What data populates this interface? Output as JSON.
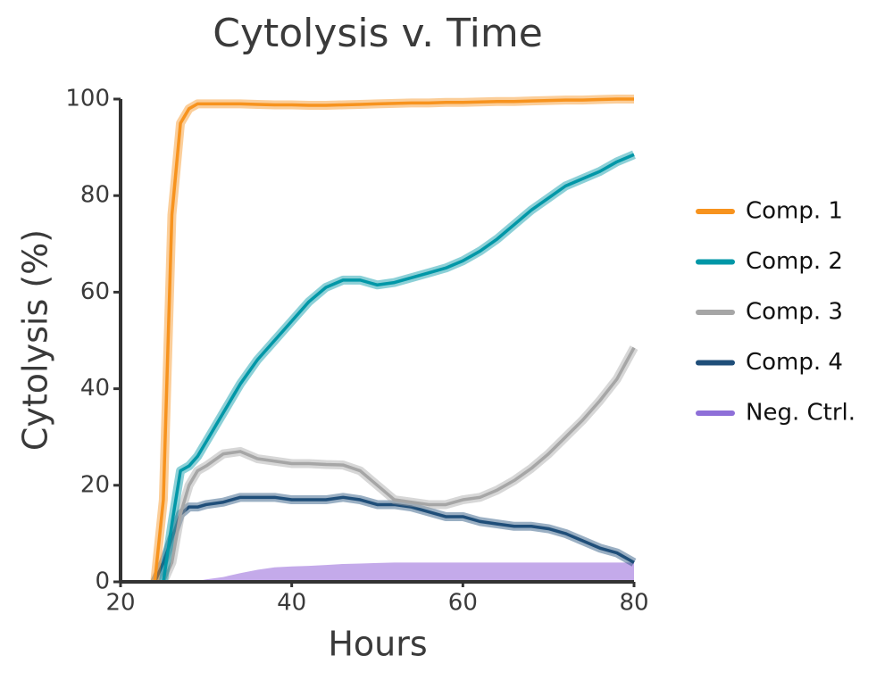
{
  "chart_data": {
    "type": "line",
    "title": "Cytolysis v. Time",
    "x_label": "Hours",
    "y_label": "Cytolysis (%)",
    "xlim": [
      20,
      80
    ],
    "ylim": [
      0,
      100
    ],
    "xticks": [
      20,
      40,
      60,
      80
    ],
    "yticks": [
      0,
      20,
      40,
      60,
      80,
      100
    ],
    "grid": false,
    "legend": "right",
    "x": [
      24,
      25,
      26,
      27,
      28,
      29,
      30,
      32,
      34,
      36,
      38,
      40,
      42,
      44,
      46,
      48,
      50,
      52,
      54,
      56,
      58,
      60,
      62,
      64,
      66,
      68,
      70,
      72,
      74,
      76,
      78,
      80
    ],
    "series": [
      {
        "name": "Comp. 1",
        "color": "#f7931e",
        "values": [
          0,
          17,
          76,
          95,
          98,
          99,
          99,
          99,
          99,
          98.9,
          98.8,
          98.8,
          98.7,
          98.7,
          98.8,
          98.9,
          99,
          99.1,
          99.2,
          99.2,
          99.3,
          99.3,
          99.4,
          99.5,
          99.5,
          99.6,
          99.7,
          99.8,
          99.8,
          99.9,
          100,
          100
        ]
      },
      {
        "name": "Comp. 2",
        "color": "#0097a7",
        "values": [
          null,
          0,
          12,
          23,
          24,
          26,
          29,
          35,
          41,
          46,
          50,
          54,
          58,
          61,
          62.5,
          62.5,
          61.5,
          62,
          63,
          64,
          65,
          66.5,
          68.5,
          71,
          74,
          77,
          79.5,
          82,
          83.5,
          85,
          87,
          88.5
        ]
      },
      {
        "name": "Comp. 3",
        "color": "#a6a6a6",
        "values": [
          null,
          0,
          4,
          14,
          20,
          23,
          24,
          26.5,
          27,
          25.5,
          25,
          24.5,
          24.5,
          24.3,
          24.2,
          23,
          20,
          17,
          16.5,
          16,
          16,
          17,
          17.5,
          19,
          21,
          23.5,
          26.5,
          30,
          33.5,
          37.5,
          42,
          48.5
        ]
      },
      {
        "name": "Comp. 4",
        "color": "#1f4e79",
        "values": [
          0,
          4,
          9,
          14,
          15.5,
          15.5,
          16,
          16.5,
          17.5,
          17.5,
          17.5,
          17,
          17,
          17,
          17.5,
          17,
          16,
          16,
          15.5,
          14.5,
          13.5,
          13.5,
          12.5,
          12,
          11.5,
          11.5,
          11,
          10,
          8.5,
          7,
          6,
          4
        ]
      },
      {
        "name": "Neg. Ctrl.",
        "color": "#c4aaea",
        "legend_color": "#8e6fd8",
        "style": "area",
        "values": [
          0,
          0,
          0,
          0,
          0,
          0.2,
          0.5,
          1,
          1.8,
          2.5,
          3,
          3.2,
          3.3,
          3.5,
          3.7,
          3.8,
          3.9,
          4,
          4,
          4,
          4,
          4,
          4,
          4,
          4,
          4,
          4,
          4,
          4,
          4,
          4,
          4
        ]
      }
    ]
  }
}
